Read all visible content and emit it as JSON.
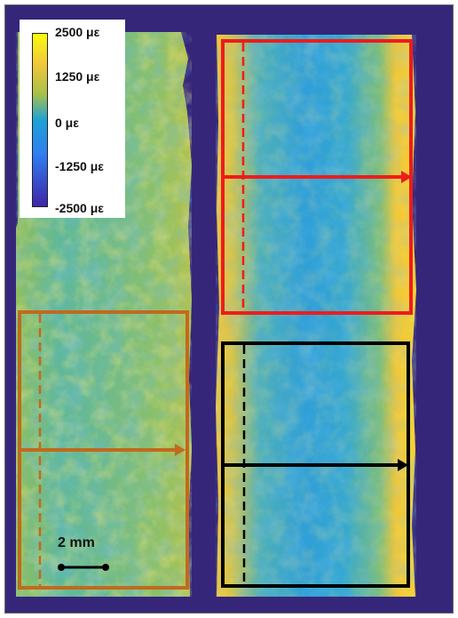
{
  "figure": {
    "background_color": "#35267a",
    "colormap": [
      "#3e26a8",
      "#2f7df0",
      "#1ea2d6",
      "#35b6a4",
      "#a8c04a",
      "#f0c63a",
      "#f9fb0e"
    ],
    "colorbar": {
      "labels": [
        "2500 με",
        "1250 με",
        "0 με",
        "-1250 με",
        "-2500 με"
      ]
    },
    "regions": [
      {
        "id": "left-bottom",
        "color": "#c06a1e"
      },
      {
        "id": "right-top",
        "color": "#ee1c1c"
      },
      {
        "id": "right-bottom",
        "color": "#000000"
      }
    ],
    "scale_bar": {
      "label": "2 mm"
    }
  }
}
